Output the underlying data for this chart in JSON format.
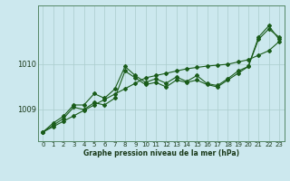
{
  "title": "Graphe pression niveau de la mer (hPa)",
  "bg_color": "#cce8ee",
  "grid_color": "#aacccc",
  "line_color": "#1a5c1a",
  "marker_color": "#1a5c1a",
  "xlim": [
    -0.5,
    23.5
  ],
  "ylim": [
    1008.3,
    1011.3
  ],
  "yticks": [
    1009,
    1010
  ],
  "xticks": [
    0,
    1,
    2,
    3,
    4,
    5,
    6,
    7,
    8,
    9,
    10,
    11,
    12,
    13,
    14,
    15,
    16,
    17,
    18,
    19,
    20,
    21,
    22,
    23
  ],
  "series_linear": [
    1008.5,
    1008.62,
    1008.74,
    1008.86,
    1008.98,
    1009.1,
    1009.22,
    1009.34,
    1009.46,
    1009.58,
    1009.7,
    1009.75,
    1009.8,
    1009.85,
    1009.9,
    1009.93,
    1009.96,
    1009.98,
    1010.0,
    1010.05,
    1010.1,
    1010.2,
    1010.3,
    1010.5
  ],
  "series_volatile1": [
    1008.5,
    1008.65,
    1008.8,
    1009.05,
    1009.0,
    1009.15,
    1009.1,
    1009.25,
    1009.85,
    1009.7,
    1009.55,
    1009.6,
    1009.5,
    1009.65,
    1009.6,
    1009.65,
    1009.55,
    1009.5,
    1009.65,
    1009.8,
    1009.95,
    1010.6,
    1010.85,
    1010.55
  ],
  "series_volatile2": [
    1008.5,
    1008.7,
    1008.85,
    1009.1,
    1009.1,
    1009.35,
    1009.25,
    1009.45,
    1009.95,
    1009.75,
    1009.6,
    1009.68,
    1009.58,
    1009.72,
    1009.62,
    1009.75,
    1009.57,
    1009.53,
    1009.68,
    1009.85,
    1009.95,
    1010.55,
    1010.78,
    1010.6
  ],
  "ms": 2.0,
  "lw": 0.8,
  "tick_fontsize": 5,
  "label_fontsize": 5.5
}
